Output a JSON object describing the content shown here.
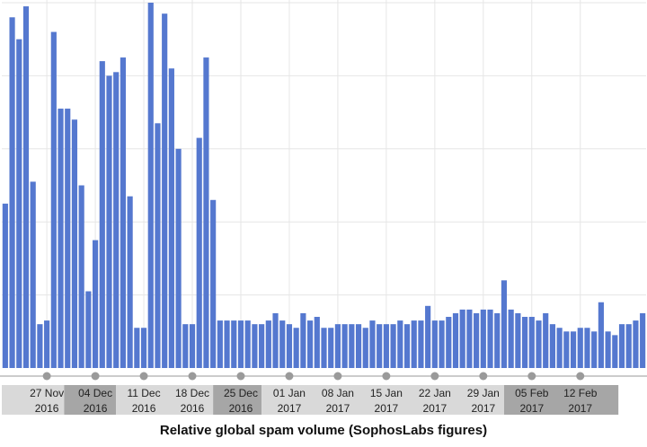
{
  "colors": {
    "bar": "#5578cf",
    "grid": "#e6e6e6",
    "axis": "#999999",
    "band_light": "#d9d9d9",
    "band_dark": "#a6a6a6",
    "marker": "#9a9a9a",
    "label": "#222222"
  },
  "caption": "Relative global spam volume (SophosLabs figures)",
  "chart_data": {
    "type": "bar",
    "title": "Relative global spam volume (SophosLabs figures)",
    "xlabel": "",
    "ylabel": "",
    "grid": true,
    "ylim": [
      0,
      100
    ],
    "x_ticks": [
      {
        "label": "27 Nov",
        "year": "2016",
        "index": 6
      },
      {
        "label": "04 Dec",
        "year": "2016",
        "index": 13
      },
      {
        "label": "11 Dec",
        "year": "2016",
        "index": 20
      },
      {
        "label": "18 Dec",
        "year": "2016",
        "index": 27
      },
      {
        "label": "25 Dec",
        "year": "2016",
        "index": 34
      },
      {
        "label": "01 Jan",
        "year": "2017",
        "index": 41
      },
      {
        "label": "08 Jan",
        "year": "2017",
        "index": 48
      },
      {
        "label": "15 Jan",
        "year": "2017",
        "index": 55
      },
      {
        "label": "22 Jan",
        "year": "2017",
        "index": 62
      },
      {
        "label": "29 Jan",
        "year": "2017",
        "index": 69
      },
      {
        "label": "05 Feb",
        "year": "2017",
        "index": 76
      },
      {
        "label": "12 Feb",
        "year": "2017",
        "index": 83
      }
    ],
    "bands": [
      {
        "from": 0,
        "to": 9,
        "shade": "light"
      },
      {
        "from": 9,
        "to": 16.5,
        "shade": "dark"
      },
      {
        "from": 16.5,
        "to": 30.5,
        "shade": "light"
      },
      {
        "from": 30.5,
        "to": 37.5,
        "shade": "dark"
      },
      {
        "from": 37.5,
        "to": 72.5,
        "shade": "light"
      },
      {
        "from": 72.5,
        "to": 89,
        "shade": "dark"
      }
    ],
    "values": [
      45,
      96,
      90,
      99,
      51,
      12,
      13,
      92,
      71,
      71,
      68,
      50,
      21,
      35,
      84,
      80,
      81,
      85,
      47,
      11,
      11,
      100,
      67,
      97,
      82,
      60,
      12,
      12,
      63,
      85,
      46,
      13,
      13,
      13,
      13,
      13,
      12,
      12,
      13,
      15,
      13,
      12,
      11,
      15,
      13,
      14,
      11,
      11,
      12,
      12,
      12,
      12,
      11,
      13,
      12,
      12,
      12,
      13,
      12,
      13,
      13,
      17,
      13,
      13,
      14,
      15,
      16,
      16,
      15,
      16,
      16,
      15,
      24,
      16,
      15,
      14,
      14,
      13,
      15,
      12,
      11,
      10,
      10,
      11,
      11,
      10,
      18,
      10,
      9,
      12,
      12,
      13,
      15
    ]
  }
}
